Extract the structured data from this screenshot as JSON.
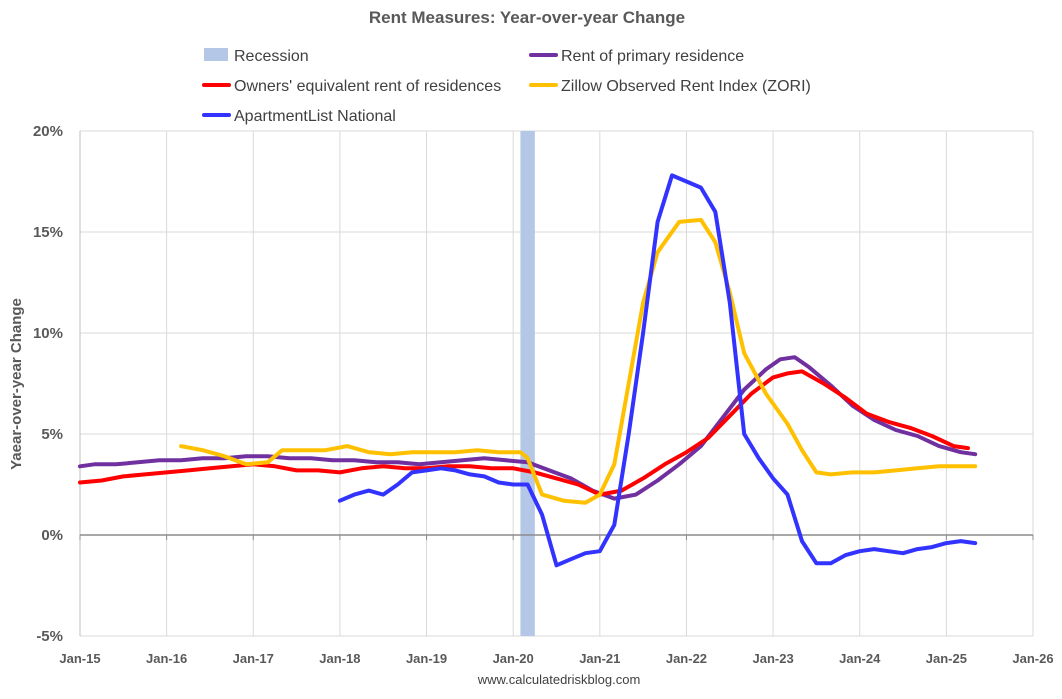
{
  "chart_data": {
    "type": "line",
    "title": "Rent Measures: Year-over-year Change",
    "ylabel": "Yaear-over-year Change",
    "xlabel": "",
    "ylim": [
      -5,
      20
    ],
    "xlim": [
      "2015-01",
      "2026-01"
    ],
    "y_ticks": [
      "-5%",
      "0%",
      "5%",
      "10%",
      "15%",
      "20%"
    ],
    "y_tick_values": [
      -5,
      0,
      5,
      10,
      15,
      20
    ],
    "x_ticks": [
      "Jan-15",
      "Jan-16",
      "Jan-17",
      "Jan-18",
      "Jan-19",
      "Jan-20",
      "Jan-21",
      "Jan-22",
      "Jan-23",
      "Jan-24",
      "Jan-25",
      "Jan-26"
    ],
    "x_tick_years": [
      2015,
      2016,
      2017,
      2018,
      2019,
      2020,
      2021,
      2022,
      2023,
      2024,
      2025,
      2026
    ],
    "grid": "vertical and horizontal, light gray",
    "legend_placement": "top",
    "source": "www.calculatedriskblog.com",
    "recession": {
      "name": "Recession",
      "start": "2020-02",
      "end": "2020-04",
      "color": "#b4c7e7"
    },
    "series": [
      {
        "name": "Rent of primary residence",
        "color": "#7030a0",
        "points": [
          [
            "2015-01",
            3.4
          ],
          [
            "2015-03",
            3.5
          ],
          [
            "2015-06",
            3.5
          ],
          [
            "2015-09",
            3.6
          ],
          [
            "2015-12",
            3.7
          ],
          [
            "2016-03",
            3.7
          ],
          [
            "2016-06",
            3.8
          ],
          [
            "2016-09",
            3.8
          ],
          [
            "2016-12",
            3.9
          ],
          [
            "2017-03",
            3.9
          ],
          [
            "2017-06",
            3.8
          ],
          [
            "2017-09",
            3.8
          ],
          [
            "2017-12",
            3.7
          ],
          [
            "2018-03",
            3.7
          ],
          [
            "2018-06",
            3.6
          ],
          [
            "2018-09",
            3.6
          ],
          [
            "2018-12",
            3.5
          ],
          [
            "2019-03",
            3.6
          ],
          [
            "2019-06",
            3.7
          ],
          [
            "2019-09",
            3.8
          ],
          [
            "2019-12",
            3.7
          ],
          [
            "2020-03",
            3.6
          ],
          [
            "2020-06",
            3.2
          ],
          [
            "2020-09",
            2.8
          ],
          [
            "2020-12",
            2.2
          ],
          [
            "2021-03",
            1.8
          ],
          [
            "2021-06",
            2.0
          ],
          [
            "2021-09",
            2.7
          ],
          [
            "2021-12",
            3.5
          ],
          [
            "2022-03",
            4.4
          ],
          [
            "2022-06",
            5.8
          ],
          [
            "2022-09",
            7.2
          ],
          [
            "2022-12",
            8.2
          ],
          [
            "2023-02",
            8.7
          ],
          [
            "2023-04",
            8.8
          ],
          [
            "2023-06",
            8.3
          ],
          [
            "2023-09",
            7.4
          ],
          [
            "2023-12",
            6.4
          ],
          [
            "2024-03",
            5.7
          ],
          [
            "2024-06",
            5.2
          ],
          [
            "2024-09",
            4.9
          ],
          [
            "2024-12",
            4.4
          ],
          [
            "2025-03",
            4.1
          ],
          [
            "2025-05",
            4.0
          ]
        ]
      },
      {
        "name": "Owners' equivalent rent of residences",
        "color": "#ff0000",
        "points": [
          [
            "2015-01",
            2.6
          ],
          [
            "2015-04",
            2.7
          ],
          [
            "2015-07",
            2.9
          ],
          [
            "2015-10",
            3.0
          ],
          [
            "2016-01",
            3.1
          ],
          [
            "2016-04",
            3.2
          ],
          [
            "2016-07",
            3.3
          ],
          [
            "2016-10",
            3.4
          ],
          [
            "2017-01",
            3.5
          ],
          [
            "2017-04",
            3.4
          ],
          [
            "2017-07",
            3.2
          ],
          [
            "2017-10",
            3.2
          ],
          [
            "2018-01",
            3.1
          ],
          [
            "2018-04",
            3.3
          ],
          [
            "2018-07",
            3.4
          ],
          [
            "2018-10",
            3.3
          ],
          [
            "2019-01",
            3.3
          ],
          [
            "2019-04",
            3.4
          ],
          [
            "2019-07",
            3.4
          ],
          [
            "2019-10",
            3.3
          ],
          [
            "2020-01",
            3.3
          ],
          [
            "2020-04",
            3.1
          ],
          [
            "2020-07",
            2.8
          ],
          [
            "2020-10",
            2.5
          ],
          [
            "2021-01",
            2.0
          ],
          [
            "2021-04",
            2.2
          ],
          [
            "2021-07",
            2.8
          ],
          [
            "2021-10",
            3.5
          ],
          [
            "2022-01",
            4.1
          ],
          [
            "2022-04",
            4.8
          ],
          [
            "2022-07",
            5.9
          ],
          [
            "2022-10",
            7.0
          ],
          [
            "2023-01",
            7.8
          ],
          [
            "2023-03",
            8.0
          ],
          [
            "2023-05",
            8.1
          ],
          [
            "2023-08",
            7.5
          ],
          [
            "2023-11",
            6.8
          ],
          [
            "2024-02",
            6.0
          ],
          [
            "2024-05",
            5.6
          ],
          [
            "2024-08",
            5.3
          ],
          [
            "2024-11",
            4.9
          ],
          [
            "2025-02",
            4.4
          ],
          [
            "2025-04",
            4.3
          ]
        ]
      },
      {
        "name": "Zillow Observed Rent Index (ZORI)",
        "color": "#ffc000",
        "points": [
          [
            "2016-03",
            4.4
          ],
          [
            "2016-06",
            4.2
          ],
          [
            "2016-09",
            3.9
          ],
          [
            "2016-12",
            3.5
          ],
          [
            "2017-03",
            3.6
          ],
          [
            "2017-05",
            4.2
          ],
          [
            "2017-08",
            4.2
          ],
          [
            "2017-11",
            4.2
          ],
          [
            "2018-02",
            4.4
          ],
          [
            "2018-05",
            4.1
          ],
          [
            "2018-08",
            4.0
          ],
          [
            "2018-11",
            4.1
          ],
          [
            "2019-02",
            4.1
          ],
          [
            "2019-05",
            4.1
          ],
          [
            "2019-08",
            4.2
          ],
          [
            "2019-11",
            4.1
          ],
          [
            "2020-02",
            4.1
          ],
          [
            "2020-03",
            3.8
          ],
          [
            "2020-05",
            2.0
          ],
          [
            "2020-08",
            1.7
          ],
          [
            "2020-11",
            1.6
          ],
          [
            "2021-01",
            2.0
          ],
          [
            "2021-03",
            3.5
          ],
          [
            "2021-05",
            7.5
          ],
          [
            "2021-07",
            11.5
          ],
          [
            "2021-09",
            14.0
          ],
          [
            "2021-12",
            15.5
          ],
          [
            "2022-03",
            15.6
          ],
          [
            "2022-05",
            14.5
          ],
          [
            "2022-07",
            12.0
          ],
          [
            "2022-09",
            9.0
          ],
          [
            "2022-12",
            7.0
          ],
          [
            "2023-03",
            5.5
          ],
          [
            "2023-05",
            4.2
          ],
          [
            "2023-07",
            3.1
          ],
          [
            "2023-09",
            3.0
          ],
          [
            "2023-12",
            3.1
          ],
          [
            "2024-03",
            3.1
          ],
          [
            "2024-06",
            3.2
          ],
          [
            "2024-09",
            3.3
          ],
          [
            "2024-12",
            3.4
          ],
          [
            "2025-03",
            3.4
          ],
          [
            "2025-05",
            3.4
          ]
        ]
      },
      {
        "name": "ApartmentList National",
        "color": "#3333ff",
        "points": [
          [
            "2018-01",
            1.7
          ],
          [
            "2018-03",
            2.0
          ],
          [
            "2018-05",
            2.2
          ],
          [
            "2018-07",
            2.0
          ],
          [
            "2018-09",
            2.5
          ],
          [
            "2018-11",
            3.1
          ],
          [
            "2019-01",
            3.2
          ],
          [
            "2019-03",
            3.3
          ],
          [
            "2019-05",
            3.2
          ],
          [
            "2019-07",
            3.0
          ],
          [
            "2019-09",
            2.9
          ],
          [
            "2019-11",
            2.6
          ],
          [
            "2020-01",
            2.5
          ],
          [
            "2020-03",
            2.5
          ],
          [
            "2020-05",
            1.0
          ],
          [
            "2020-07",
            -1.5
          ],
          [
            "2020-09",
            -1.2
          ],
          [
            "2020-11",
            -0.9
          ],
          [
            "2021-01",
            -0.8
          ],
          [
            "2021-03",
            0.5
          ],
          [
            "2021-05",
            5.0
          ],
          [
            "2021-07",
            10.0
          ],
          [
            "2021-09",
            15.5
          ],
          [
            "2021-11",
            17.8
          ],
          [
            "2022-01",
            17.5
          ],
          [
            "2022-03",
            17.2
          ],
          [
            "2022-05",
            16.0
          ],
          [
            "2022-07",
            11.5
          ],
          [
            "2022-09",
            5.0
          ],
          [
            "2022-11",
            3.8
          ],
          [
            "2023-01",
            2.8
          ],
          [
            "2023-03",
            2.0
          ],
          [
            "2023-05",
            -0.3
          ],
          [
            "2023-07",
            -1.4
          ],
          [
            "2023-09",
            -1.4
          ],
          [
            "2023-11",
            -1.0
          ],
          [
            "2024-01",
            -0.8
          ],
          [
            "2024-03",
            -0.7
          ],
          [
            "2024-05",
            -0.8
          ],
          [
            "2024-07",
            -0.9
          ],
          [
            "2024-09",
            -0.7
          ],
          [
            "2024-11",
            -0.6
          ],
          [
            "2025-01",
            -0.4
          ],
          [
            "2025-03",
            -0.3
          ],
          [
            "2025-05",
            -0.4
          ]
        ]
      }
    ]
  }
}
